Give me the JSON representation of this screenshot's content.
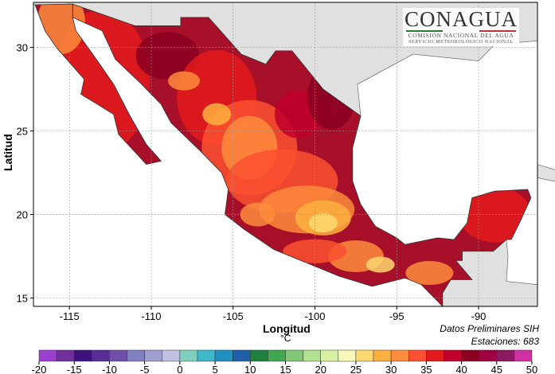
{
  "map": {
    "xlabel": "Longitud",
    "ylabel": "Latitud",
    "x_ticks": [
      "-115",
      "-110",
      "-105",
      "-100",
      "-95",
      "-90"
    ],
    "x_tick_values": [
      -115,
      -110,
      -105,
      -100,
      -95,
      -90
    ],
    "y_ticks": [
      "15",
      "20",
      "25",
      "30"
    ],
    "y_tick_values": [
      15,
      20,
      25,
      30
    ],
    "lon_range": [
      -117.2,
      -86.4
    ],
    "lat_range": [
      14.5,
      32.7
    ],
    "land_color": "#e0e0e0",
    "sea_color": "#ffffff"
  },
  "logo": {
    "title": "CONAGUA",
    "subtitle1": "COMISIÓN NACIONAL DEL AGUA",
    "subtitle2": "SERVICIO METEOROLÓGICO NACIONAL"
  },
  "notes": {
    "source": "Datos Preliminares SIH",
    "stations_label": "Estaciones:  683"
  },
  "colorbar": {
    "unit": "°C",
    "min": -20,
    "max": 50,
    "step": 2.5,
    "tick_labels": [
      "-20",
      "-15",
      "-10",
      "-5",
      "0",
      "5",
      "10",
      "15",
      "20",
      "25",
      "30",
      "35",
      "40",
      "45",
      "50"
    ],
    "colors": [
      "#9a3fcf",
      "#70309a",
      "#3f0f80",
      "#5a2d96",
      "#6f4fa8",
      "#8080c0",
      "#a0a0d0",
      "#c0c0e0",
      "#80d0c0",
      "#40b8c8",
      "#2090c0",
      "#2060a8",
      "#208040",
      "#40a850",
      "#80c878",
      "#b0e090",
      "#d8f0a0",
      "#f8f8b8",
      "#fdd870",
      "#fdb040",
      "#fd8c3c",
      "#fc5030",
      "#e31a1c",
      "#c0002a",
      "#8b0020",
      "#a00040",
      "#8b1a60",
      "#d030a0"
    ]
  }
}
